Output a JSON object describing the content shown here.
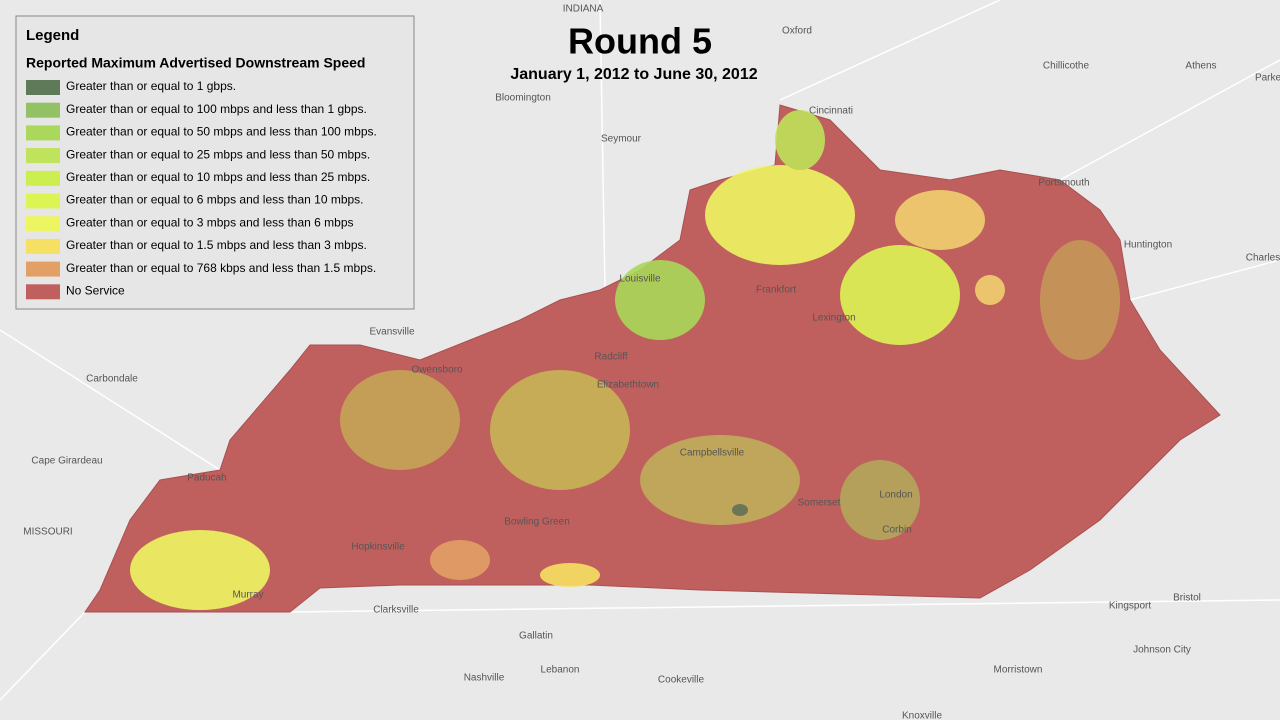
{
  "title": "Round 5",
  "subtitle": "January 1, 2012 to June 30, 2012",
  "legend": {
    "heading": "Legend",
    "title": "Reported Maximum Advertised Downstream Speed",
    "items": [
      {
        "label": "Greater than or equal to 1 gbps.",
        "color": "#5f7a58"
      },
      {
        "label": "Greater than or equal to 100 mbps and less than 1 gbps.",
        "color": "#93c266"
      },
      {
        "label": "Greater than or equal to 50 mbps and less than 100 mbps.",
        "color": "#aad85a"
      },
      {
        "label": "Greater than or equal to 25 mbps and less than 50 mbps.",
        "color": "#bfe35a"
      },
      {
        "label": "Greater than or equal to 10 mbps and less than 25 mbps.",
        "color": "#ccee50"
      },
      {
        "label": "Greater than or equal to 6 mbps and less than 10 mbps.",
        "color": "#ddf455"
      },
      {
        "label": "Greater than or equal to 3 mbps and less than 6 mbps",
        "color": "#eef562"
      },
      {
        "label": "Greater than or equal to 1.5 mbps and less than 3 mbps.",
        "color": "#f6e064"
      },
      {
        "label": "Greater than or equal to 768 kbps and less than 1.5 mbps.",
        "color": "#e3a066"
      },
      {
        "label": "No Service",
        "color": "#c0605e"
      }
    ]
  },
  "places": [
    "INDIANA",
    "Oxford",
    "Chillicothe",
    "Athens",
    "Parke",
    "Bloomington",
    "Seymour",
    "Cincinnati",
    "Portsmouth",
    "Huntington",
    "Charles",
    "Louisville",
    "Frankfort",
    "Lexington",
    "Evansville",
    "Carbondale",
    "Owensboro",
    "Radcliff",
    "Elizabethtown",
    "Campbellsville",
    "Cape Girardeau",
    "MISSOURI",
    "Paducah",
    "Bowling Green",
    "Hopkinsville",
    "Murray",
    "Somerset",
    "London",
    "Corbin",
    "Clarksville",
    "Gallatin",
    "Nashville",
    "Lebanon",
    "Cookeville",
    "Kingsport",
    "Bristol",
    "Johnson City",
    "Morristown",
    "Knoxville"
  ]
}
